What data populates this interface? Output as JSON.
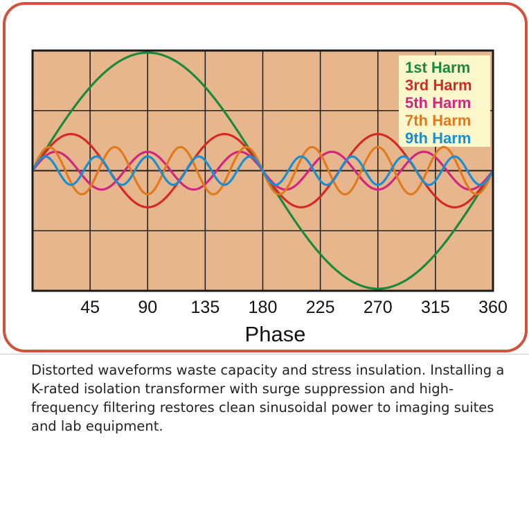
{
  "chart_data": {
    "type": "line",
    "title": "",
    "xlabel": "Phase",
    "ylabel": "",
    "xlim": [
      0,
      360
    ],
    "ylim": [
      -1,
      1
    ],
    "x_ticks": [
      45,
      90,
      135,
      180,
      225,
      270,
      315,
      360
    ],
    "grid": true,
    "legend_position": "top-right",
    "series": [
      {
        "name": "1st Harm",
        "harmonic": 1,
        "amplitude": 1.0,
        "color": "#1a8a3a"
      },
      {
        "name": "3rd Harm",
        "harmonic": 3,
        "amplitude": 0.31,
        "color": "#d42a26"
      },
      {
        "name": "5th Harm",
        "harmonic": 5,
        "amplitude": 0.16,
        "color": "#d0267f"
      },
      {
        "name": "7th Harm",
        "harmonic": 7,
        "amplitude": 0.2,
        "color": "#e07a1e"
      },
      {
        "name": "9th Harm",
        "harmonic": 9,
        "amplitude": 0.12,
        "color": "#1a8fd0"
      }
    ],
    "background": "#e8b68c",
    "legend_bg": "#fdf8cc"
  },
  "caption": "Distorted waveforms waste capacity and stress insulation. Installing a K-rated isolation transformer with surge suppression and high-frequency filtering restores clean sinusoidal power to imaging suites and lab equipment."
}
